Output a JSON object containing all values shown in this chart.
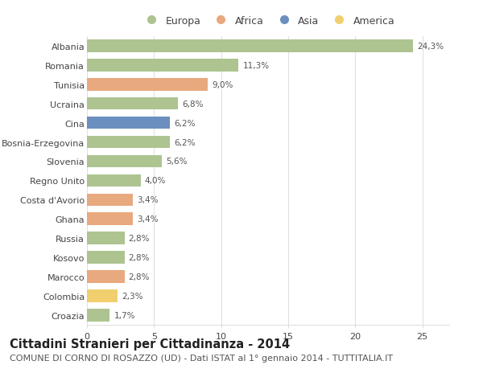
{
  "categories": [
    "Albania",
    "Romania",
    "Tunisia",
    "Ucraina",
    "Cina",
    "Bosnia-Erzegovina",
    "Slovenia",
    "Regno Unito",
    "Costa d'Avorio",
    "Ghana",
    "Russia",
    "Kosovo",
    "Marocco",
    "Colombia",
    "Croazia"
  ],
  "values": [
    24.3,
    11.3,
    9.0,
    6.8,
    6.2,
    6.2,
    5.6,
    4.0,
    3.4,
    3.4,
    2.8,
    2.8,
    2.8,
    2.3,
    1.7
  ],
  "labels": [
    "24,3%",
    "11,3%",
    "9,0%",
    "6,8%",
    "6,2%",
    "6,2%",
    "5,6%",
    "4,0%",
    "3,4%",
    "3,4%",
    "2,8%",
    "2,8%",
    "2,8%",
    "2,3%",
    "1,7%"
  ],
  "continents": [
    "Europa",
    "Europa",
    "Africa",
    "Europa",
    "Asia",
    "Europa",
    "Europa",
    "Europa",
    "Africa",
    "Africa",
    "Europa",
    "Europa",
    "Africa",
    "America",
    "Europa"
  ],
  "continent_colors": {
    "Europa": "#adc491",
    "Africa": "#e8a97e",
    "Asia": "#6b8fbe",
    "America": "#f2cf6e"
  },
  "legend_order": [
    "Europa",
    "Africa",
    "Asia",
    "America"
  ],
  "title": "Cittadini Stranieri per Cittadinanza - 2014",
  "subtitle": "COMUNE DI CORNO DI ROSAZZO (UD) - Dati ISTAT al 1° gennaio 2014 - TUTTITALIA.IT",
  "xlim": [
    0,
    27
  ],
  "xticks": [
    0,
    5,
    10,
    15,
    20,
    25
  ],
  "background_color": "#ffffff",
  "grid_color": "#e0e0e0",
  "bar_height": 0.65,
  "title_fontsize": 10.5,
  "subtitle_fontsize": 8,
  "label_fontsize": 7.5,
  "tick_fontsize": 8,
  "legend_fontsize": 9
}
